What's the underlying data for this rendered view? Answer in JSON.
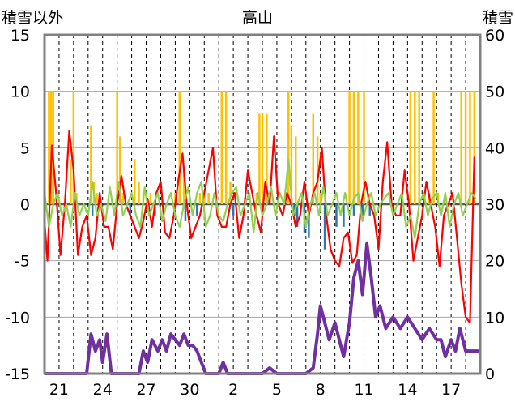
{
  "chart_data": {
    "type": "line",
    "title": "高山",
    "ylabel_left": "積雪以外",
    "ylabel_right": "積雪",
    "xlabel": "",
    "left_axis": {
      "min": -15,
      "max": 15,
      "ticks": [
        "15",
        "10",
        "5",
        "0",
        "-5",
        "-10",
        "-15"
      ],
      "tick_values": [
        15,
        10,
        5,
        0,
        -5,
        -10,
        -15
      ]
    },
    "right_axis": {
      "min": 0,
      "max": 60,
      "ticks": [
        "60",
        "50",
        "40",
        "30",
        "20",
        "10",
        "0"
      ],
      "tick_values": [
        60,
        50,
        40,
        30,
        20,
        10,
        0
      ]
    },
    "x_axis": {
      "min": 0,
      "max": 30,
      "tick_labels": [
        "21",
        "24",
        "27",
        "30",
        "2",
        "5",
        "8",
        "11",
        "14",
        "17"
      ],
      "tick_positions": [
        1,
        4,
        7,
        10,
        13,
        16,
        19,
        22,
        25,
        28
      ]
    },
    "grid": {
      "vertical": "dashed",
      "horizontal": "solid"
    },
    "colors": {
      "axes": "#808080",
      "grid": "#a6a6a6",
      "zero_line": "#595959",
      "yellow": "#ffc000",
      "blue": "#2e75b6",
      "red": "#ff0000",
      "green": "#92d050",
      "purple": "#7030a0"
    },
    "series": [
      {
        "color": "#ffc000",
        "kind": "bar",
        "axis": "left",
        "x": [
          0.3,
          0.45,
          0.6,
          1.8,
          2.0,
          2.2,
          3.2,
          3.4,
          3.6,
          5.0,
          5.2,
          5.4,
          6.2,
          6.5,
          6.8,
          7.3,
          9.0,
          9.3,
          9.6,
          10.7,
          11.0,
          11.3,
          12.2,
          12.5,
          12.8,
          14.6,
          14.8,
          15.0,
          15.3,
          16.8,
          17.0,
          17.3,
          18.5,
          18.8,
          19.0,
          21.0,
          21.3,
          21.6,
          22.0,
          22.3,
          25.2,
          25.5,
          25.8,
          26.5,
          26.8,
          27.1,
          28.7,
          29.0,
          29.3,
          29.6
        ],
        "values": [
          10,
          10,
          10,
          4,
          10,
          1,
          7,
          2,
          1,
          10,
          6,
          1,
          4,
          2,
          1,
          1,
          1,
          10,
          3,
          1,
          1,
          1,
          10,
          10,
          2,
          1,
          8,
          8,
          8,
          10,
          7,
          6,
          8,
          6,
          1,
          10,
          10,
          10,
          10,
          1,
          10,
          10,
          10,
          1,
          10,
          1,
          10,
          10,
          10,
          10
        ]
      },
      {
        "color": "#2e75b6",
        "kind": "bar",
        "axis": "left",
        "x": [
          3.3,
          5.9,
          7.6,
          9.7,
          10.5,
          13.0,
          17.2,
          17.4,
          17.9,
          18.2,
          19.3,
          20.1,
          20.6,
          21.3,
          21.9,
          22.4
        ],
        "values": [
          -1,
          -1,
          -1,
          -1.5,
          -1,
          -1,
          -1,
          -2,
          -2.5,
          -3,
          -4,
          -2,
          -2,
          -1,
          -1,
          -1
        ]
      },
      {
        "color": "#ff0000",
        "kind": "line",
        "axis": "left",
        "x": [
          0.0,
          0.2,
          0.5,
          0.8,
          1.1,
          1.4,
          1.7,
          2.0,
          2.3,
          2.6,
          2.9,
          3.2,
          3.5,
          3.8,
          4.1,
          4.4,
          4.7,
          5.0,
          5.3,
          5.6,
          5.9,
          6.2,
          6.5,
          6.8,
          7.1,
          7.4,
          7.7,
          8.0,
          8.3,
          8.6,
          8.9,
          9.2,
          9.5,
          9.8,
          10.1,
          10.4,
          10.7,
          11.0,
          11.3,
          11.6,
          11.9,
          12.2,
          12.5,
          12.8,
          13.1,
          13.4,
          13.7,
          14.0,
          14.3,
          14.6,
          14.9,
          15.2,
          15.5,
          15.8,
          16.1,
          16.4,
          16.7,
          17.0,
          17.3,
          17.6,
          17.9,
          18.2,
          18.5,
          18.8,
          19.1,
          19.4,
          19.7,
          20.0,
          20.3,
          20.6,
          20.9,
          21.2,
          21.5,
          21.8,
          22.1,
          22.4,
          22.7,
          23.0,
          23.3,
          23.6,
          23.9,
          24.2,
          24.5,
          24.8,
          25.1,
          25.4,
          25.7,
          26.0,
          26.3,
          26.6,
          26.9,
          27.2,
          27.5,
          27.8,
          28.1,
          28.4,
          28.7,
          29.0,
          29.3,
          29.6
        ],
        "values": [
          -1.5,
          -5,
          5.2,
          1,
          -4.5,
          0,
          6.5,
          3,
          -4.5,
          -2,
          -1,
          -4.5,
          -3,
          1,
          -2,
          -2,
          -4,
          0,
          2.5,
          0,
          -1,
          -2,
          -3,
          -1.5,
          0.5,
          -2,
          1,
          2,
          -2.5,
          -3,
          -1,
          2,
          4.5,
          0,
          -3,
          -2,
          -1,
          1,
          3,
          5,
          -1,
          -2,
          -2,
          0,
          1,
          -3,
          -1,
          3,
          1,
          -1,
          -2.5,
          2,
          0,
          6,
          0,
          -1,
          1,
          0,
          -2,
          -1,
          2,
          -1,
          1,
          2,
          5,
          -1,
          -4,
          -5,
          -5.5,
          -3,
          -2.5,
          -5.2,
          -4.5,
          0,
          2,
          0,
          -1,
          -4,
          2,
          5.5,
          0,
          -1,
          -1,
          3,
          0,
          -5,
          -3,
          -1,
          2,
          0,
          -2,
          -5.5,
          -1,
          0,
          1,
          -3,
          -7,
          -10,
          -10.5,
          4.2
        ]
      },
      {
        "color": "#92d050",
        "kind": "line",
        "axis": "left",
        "x": [
          0.0,
          0.3,
          0.6,
          0.9,
          1.2,
          1.5,
          1.8,
          2.1,
          2.4,
          2.7,
          3.0,
          3.3,
          3.6,
          3.9,
          4.2,
          4.5,
          4.8,
          5.1,
          5.4,
          5.7,
          6.0,
          6.3,
          6.6,
          6.9,
          7.2,
          7.5,
          7.8,
          8.1,
          8.4,
          8.7,
          9.0,
          9.3,
          9.6,
          9.9,
          10.2,
          10.5,
          10.8,
          11.1,
          11.4,
          11.7,
          12.0,
          12.3,
          12.6,
          12.9,
          13.2,
          13.5,
          13.8,
          14.1,
          14.4,
          14.7,
          15.0,
          15.3,
          15.6,
          15.9,
          16.2,
          16.5,
          16.8,
          17.1,
          17.4,
          17.7,
          18.0,
          18.3,
          18.6,
          18.9,
          19.2,
          19.5,
          19.8,
          20.1,
          20.4,
          20.7,
          21.0,
          21.3,
          21.6,
          21.9,
          22.2,
          22.5,
          22.8,
          23.1,
          23.4,
          23.7,
          24.0,
          24.3,
          24.6,
          24.9,
          25.2,
          25.5,
          25.8,
          26.1,
          26.4,
          26.7,
          27.0,
          27.3,
          27.6,
          27.9,
          28.2,
          28.5,
          28.8,
          29.1,
          29.4,
          29.7
        ],
        "values": [
          1,
          -2,
          0,
          1,
          -1,
          0,
          -2,
          1,
          -1,
          0,
          -1,
          2,
          -1,
          0,
          -1.5,
          1.5,
          -1,
          2,
          -1,
          0,
          1,
          -1,
          -2,
          1.5,
          -1,
          0,
          1,
          -1.5,
          0,
          1,
          -1,
          -2,
          0,
          1.5,
          -1,
          1,
          2,
          -2,
          -1,
          1,
          -1,
          -1.5,
          0,
          1,
          1.5,
          -1,
          0,
          1,
          -2.5,
          1,
          -1,
          0,
          1.5,
          -1,
          1,
          0,
          4,
          -1,
          0,
          1,
          -2,
          0,
          1,
          -1,
          1.5,
          -1,
          0,
          1,
          -1,
          1,
          -1,
          0.5,
          1,
          -1.5,
          0,
          1,
          -1,
          0,
          0.5,
          1,
          -1,
          0,
          1,
          -2,
          -1,
          -3,
          0,
          1,
          -1,
          0.5,
          1,
          -1,
          1,
          -2,
          0,
          1,
          -1,
          0,
          1,
          0.5
        ]
      },
      {
        "color": "#7030a0",
        "kind": "line",
        "axis": "right",
        "x": [
          0.0,
          1.0,
          2.0,
          2.9,
          3.2,
          3.5,
          3.8,
          4.0,
          4.3,
          4.6,
          5.0,
          6.0,
          6.5,
          6.8,
          7.1,
          7.4,
          7.8,
          8.1,
          8.4,
          8.7,
          9.0,
          9.3,
          9.6,
          9.9,
          10.2,
          10.5,
          10.8,
          11.1,
          11.4,
          12.0,
          12.3,
          12.6,
          13.0,
          14.0,
          15.0,
          15.5,
          16.0,
          17.0,
          18.0,
          18.5,
          18.8,
          19.0,
          19.3,
          19.6,
          20.0,
          20.3,
          20.6,
          21.0,
          21.3,
          21.6,
          21.9,
          22.2,
          22.5,
          22.8,
          23.1,
          23.5,
          24.0,
          24.5,
          25.0,
          25.5,
          26.0,
          26.5,
          27.0,
          27.3,
          27.6,
          28.0,
          28.3,
          28.6,
          29.0,
          29.5,
          30.0
        ],
        "values": [
          0,
          0,
          0,
          0,
          7,
          4,
          6,
          2,
          7,
          0,
          0,
          0,
          0,
          4,
          2,
          6,
          4,
          6,
          4,
          7,
          6,
          5,
          7,
          5,
          5,
          4,
          2,
          0,
          0,
          0,
          2,
          0,
          0,
          0,
          0,
          1,
          0,
          0,
          0,
          1,
          7,
          12,
          9,
          6,
          9,
          6,
          3,
          9,
          17,
          20,
          14,
          23,
          17,
          10,
          12,
          8,
          10,
          8,
          10,
          8,
          6,
          8,
          6,
          6,
          3,
          6,
          4,
          8,
          4,
          4,
          4
        ]
      }
    ]
  }
}
